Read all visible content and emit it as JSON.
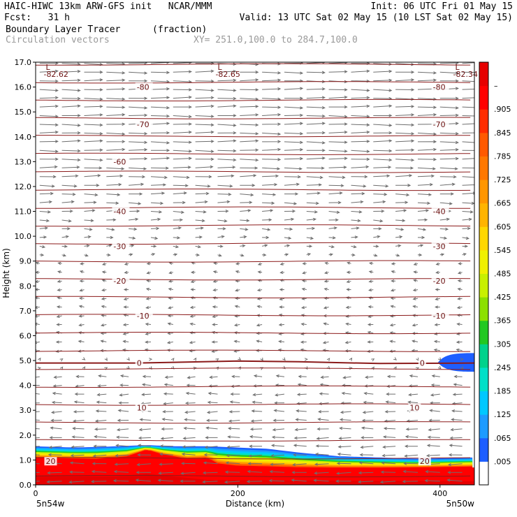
{
  "header": {
    "line1_left": "HAIC-HIWC 13km ARW-GFS init   NCAR/MMM",
    "line1_right": "Init: 06 UTC Fri 01 May 15",
    "line2_left": "Fcst:   31 h",
    "line2_right": "Valid: 13 UTC Sat 02 May 15 (10 LST Sat 02 May 15)",
    "field_name": "Boundary Layer Tracer",
    "field_units": "(fraction)",
    "overlay_name": "Circulation vectors",
    "xy_range": "XY= 251.0,100.0 to 284.7,100.0"
  },
  "chart_data": {
    "type": "heatmap",
    "title": "Boundary Layer Tracer",
    "units": "(fraction)",
    "xlabel": "Distance (km)",
    "ylabel": "Height (km)",
    "xlim": [
      0,
      434
    ],
    "ylim": [
      0,
      17
    ],
    "x_ticks": [
      "0",
      "200",
      "400"
    ],
    "y_ticks": [
      "0.0",
      "1.0",
      "2.0",
      "3.0",
      "4.0",
      "5.0",
      "6.0",
      "7.0",
      "8.0",
      "9.0",
      "10.0",
      "11.0",
      "12.0",
      "13.0",
      "14.0",
      "15.0",
      "16.0",
      "17.0"
    ],
    "x_endpoints": {
      "left": "5n54w",
      "right": "5n50w"
    },
    "colorbar": {
      "labels": [
        ".005",
        ".065",
        ".125",
        ".185",
        ".245",
        ".305",
        ".365",
        ".425",
        ".485",
        ".545",
        ".605",
        ".665",
        ".725",
        ".785",
        ".845",
        ".905",
        "–"
      ],
      "colors": [
        "#ffffff",
        "#1e5eff",
        "#1e9bff",
        "#00c8ff",
        "#00e0c8",
        "#00d28c",
        "#22c822",
        "#8ce000",
        "#c8f000",
        "#f0f000",
        "#ffd700",
        "#ffb400",
        "#ff9600",
        "#ff7800",
        "#ff5a00",
        "#ff2d00",
        "#ff0000",
        "#e60000"
      ]
    },
    "temperature_contours": [
      {
        "label": "-80",
        "height_km": 16.0
      },
      {
        "label": "-70",
        "height_km": 14.6
      },
      {
        "label": "-60",
        "height_km": 13.1
      },
      {
        "label": "-40",
        "height_km": 11.0
      },
      {
        "label": "-30",
        "height_km": 9.6
      },
      {
        "label": "-20",
        "height_km": 8.2
      },
      {
        "label": "-10",
        "height_km": 6.8
      },
      {
        "label": "0",
        "height_km": 4.9
      },
      {
        "label": "10",
        "height_km": 3.1
      },
      {
        "label": "20",
        "height_km": 0.95
      }
    ],
    "contour_labels": [
      {
        "text": "-80",
        "x_km": 100,
        "y_km": 16.0
      },
      {
        "text": "-80",
        "x_km": 393,
        "y_km": 16.0
      },
      {
        "text": "-70",
        "x_km": 100,
        "y_km": 14.5
      },
      {
        "text": "-70",
        "x_km": 393,
        "y_km": 14.5
      },
      {
        "text": "-60",
        "x_km": 77,
        "y_km": 13.0
      },
      {
        "text": "-40",
        "x_km": 77,
        "y_km": 11.0
      },
      {
        "text": "-40",
        "x_km": 393,
        "y_km": 11.0
      },
      {
        "text": "-30",
        "x_km": 77,
        "y_km": 9.6
      },
      {
        "text": "-30",
        "x_km": 393,
        "y_km": 9.6
      },
      {
        "text": "-20",
        "x_km": 77,
        "y_km": 8.2
      },
      {
        "text": "-20",
        "x_km": 393,
        "y_km": 8.2
      },
      {
        "text": "-10",
        "x_km": 100,
        "y_km": 6.8
      },
      {
        "text": "-10",
        "x_km": 393,
        "y_km": 6.8
      },
      {
        "text": "0",
        "x_km": 100,
        "y_km": 4.9
      },
      {
        "text": "0",
        "x_km": 380,
        "y_km": 4.9
      },
      {
        "text": "10",
        "x_km": 100,
        "y_km": 3.1
      },
      {
        "text": "10",
        "x_km": 370,
        "y_km": 3.1
      },
      {
        "text": "20",
        "x_km": 10,
        "y_km": 0.95
      },
      {
        "text": "20",
        "x_km": 380,
        "y_km": 0.95
      }
    ],
    "low_markers": [
      {
        "symbol": "L",
        "value": "-82.62",
        "x_km": 10
      },
      {
        "symbol": "L",
        "value": "-82.65",
        "x_km": 180
      },
      {
        "symbol": "L",
        "value": "-82.34",
        "x_km": 415
      }
    ],
    "tracer_boundary_km": [
      [
        0,
        1.55
      ],
      [
        40,
        1.5
      ],
      [
        80,
        1.55
      ],
      [
        110,
        1.6
      ],
      [
        140,
        1.55
      ],
      [
        170,
        1.55
      ],
      [
        200,
        1.5
      ],
      [
        230,
        1.45
      ],
      [
        260,
        1.3
      ],
      [
        300,
        1.15
      ],
      [
        340,
        1.1
      ],
      [
        380,
        1.05
      ],
      [
        434,
        1.1
      ]
    ],
    "tracer_red_top_km": [
      [
        0,
        1.05
      ],
      [
        60,
        1.0
      ],
      [
        90,
        1.1
      ],
      [
        110,
        1.4
      ],
      [
        125,
        1.2
      ],
      [
        150,
        1.0
      ],
      [
        170,
        1.05
      ],
      [
        180,
        0.8
      ],
      [
        200,
        0.7
      ],
      [
        260,
        0.65
      ],
      [
        340,
        0.65
      ],
      [
        434,
        0.7
      ]
    ],
    "upper_blob": {
      "x_km": [
        398,
        434
      ],
      "height_km": [
        4.55,
        5.3
      ],
      "value_range": ".005-.065"
    }
  }
}
